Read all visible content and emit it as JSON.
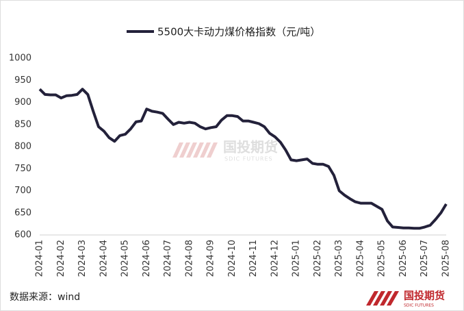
{
  "chart_data": {
    "type": "line",
    "categories": [
      "2024-01",
      null,
      null,
      null,
      "2024-02",
      null,
      null,
      null,
      "2024-03",
      null,
      null,
      null,
      "2024-04",
      null,
      null,
      null,
      "2024-05",
      null,
      null,
      null,
      "2024-06",
      null,
      null,
      null,
      "2024-07",
      null,
      null,
      null,
      "2024-08",
      null,
      null,
      null,
      "2024-09",
      null,
      null,
      null,
      "2024-10",
      null,
      null,
      null,
      "2024-11",
      null,
      null,
      null,
      "2024-12",
      null,
      null,
      null,
      "2025-01",
      null,
      null,
      null,
      "2025-02",
      null,
      null,
      null,
      "2025-03",
      null,
      null,
      null,
      "2025-04",
      null,
      null,
      null,
      "2025-05",
      null,
      null,
      null,
      "2025-06",
      null,
      null,
      null,
      "2025-07",
      null,
      null,
      null,
      "2025-08"
    ],
    "series": [
      {
        "name": "5500大卡动力煤价格指数（元/吨）",
        "color": "#23213a",
        "values": [
          930,
          918,
          917,
          917,
          910,
          915,
          916,
          918,
          930,
          918,
          880,
          845,
          835,
          820,
          812,
          825,
          828,
          840,
          856,
          858,
          885,
          880,
          878,
          875,
          862,
          850,
          855,
          853,
          855,
          853,
          845,
          840,
          843,
          845,
          860,
          870,
          870,
          868,
          858,
          858,
          855,
          852,
          845,
          830,
          822,
          810,
          792,
          770,
          768,
          770,
          772,
          762,
          760,
          760,
          755,
          735,
          700,
          690,
          682,
          675,
          672,
          672,
          672,
          665,
          658,
          632,
          618,
          617,
          616,
          616,
          615,
          615,
          618,
          622,
          635,
          650,
          670
        ]
      }
    ],
    "ylim": [
      600,
      1000
    ],
    "yticks": [
      600,
      650,
      700,
      750,
      800,
      850,
      900,
      950,
      1000
    ],
    "source": "数据来源：wind",
    "watermark": {
      "name": "国投期货",
      "english": "SDIC FUTURES"
    },
    "logo": {
      "name": "国投期货",
      "english": "SDIC FUTURES"
    }
  }
}
